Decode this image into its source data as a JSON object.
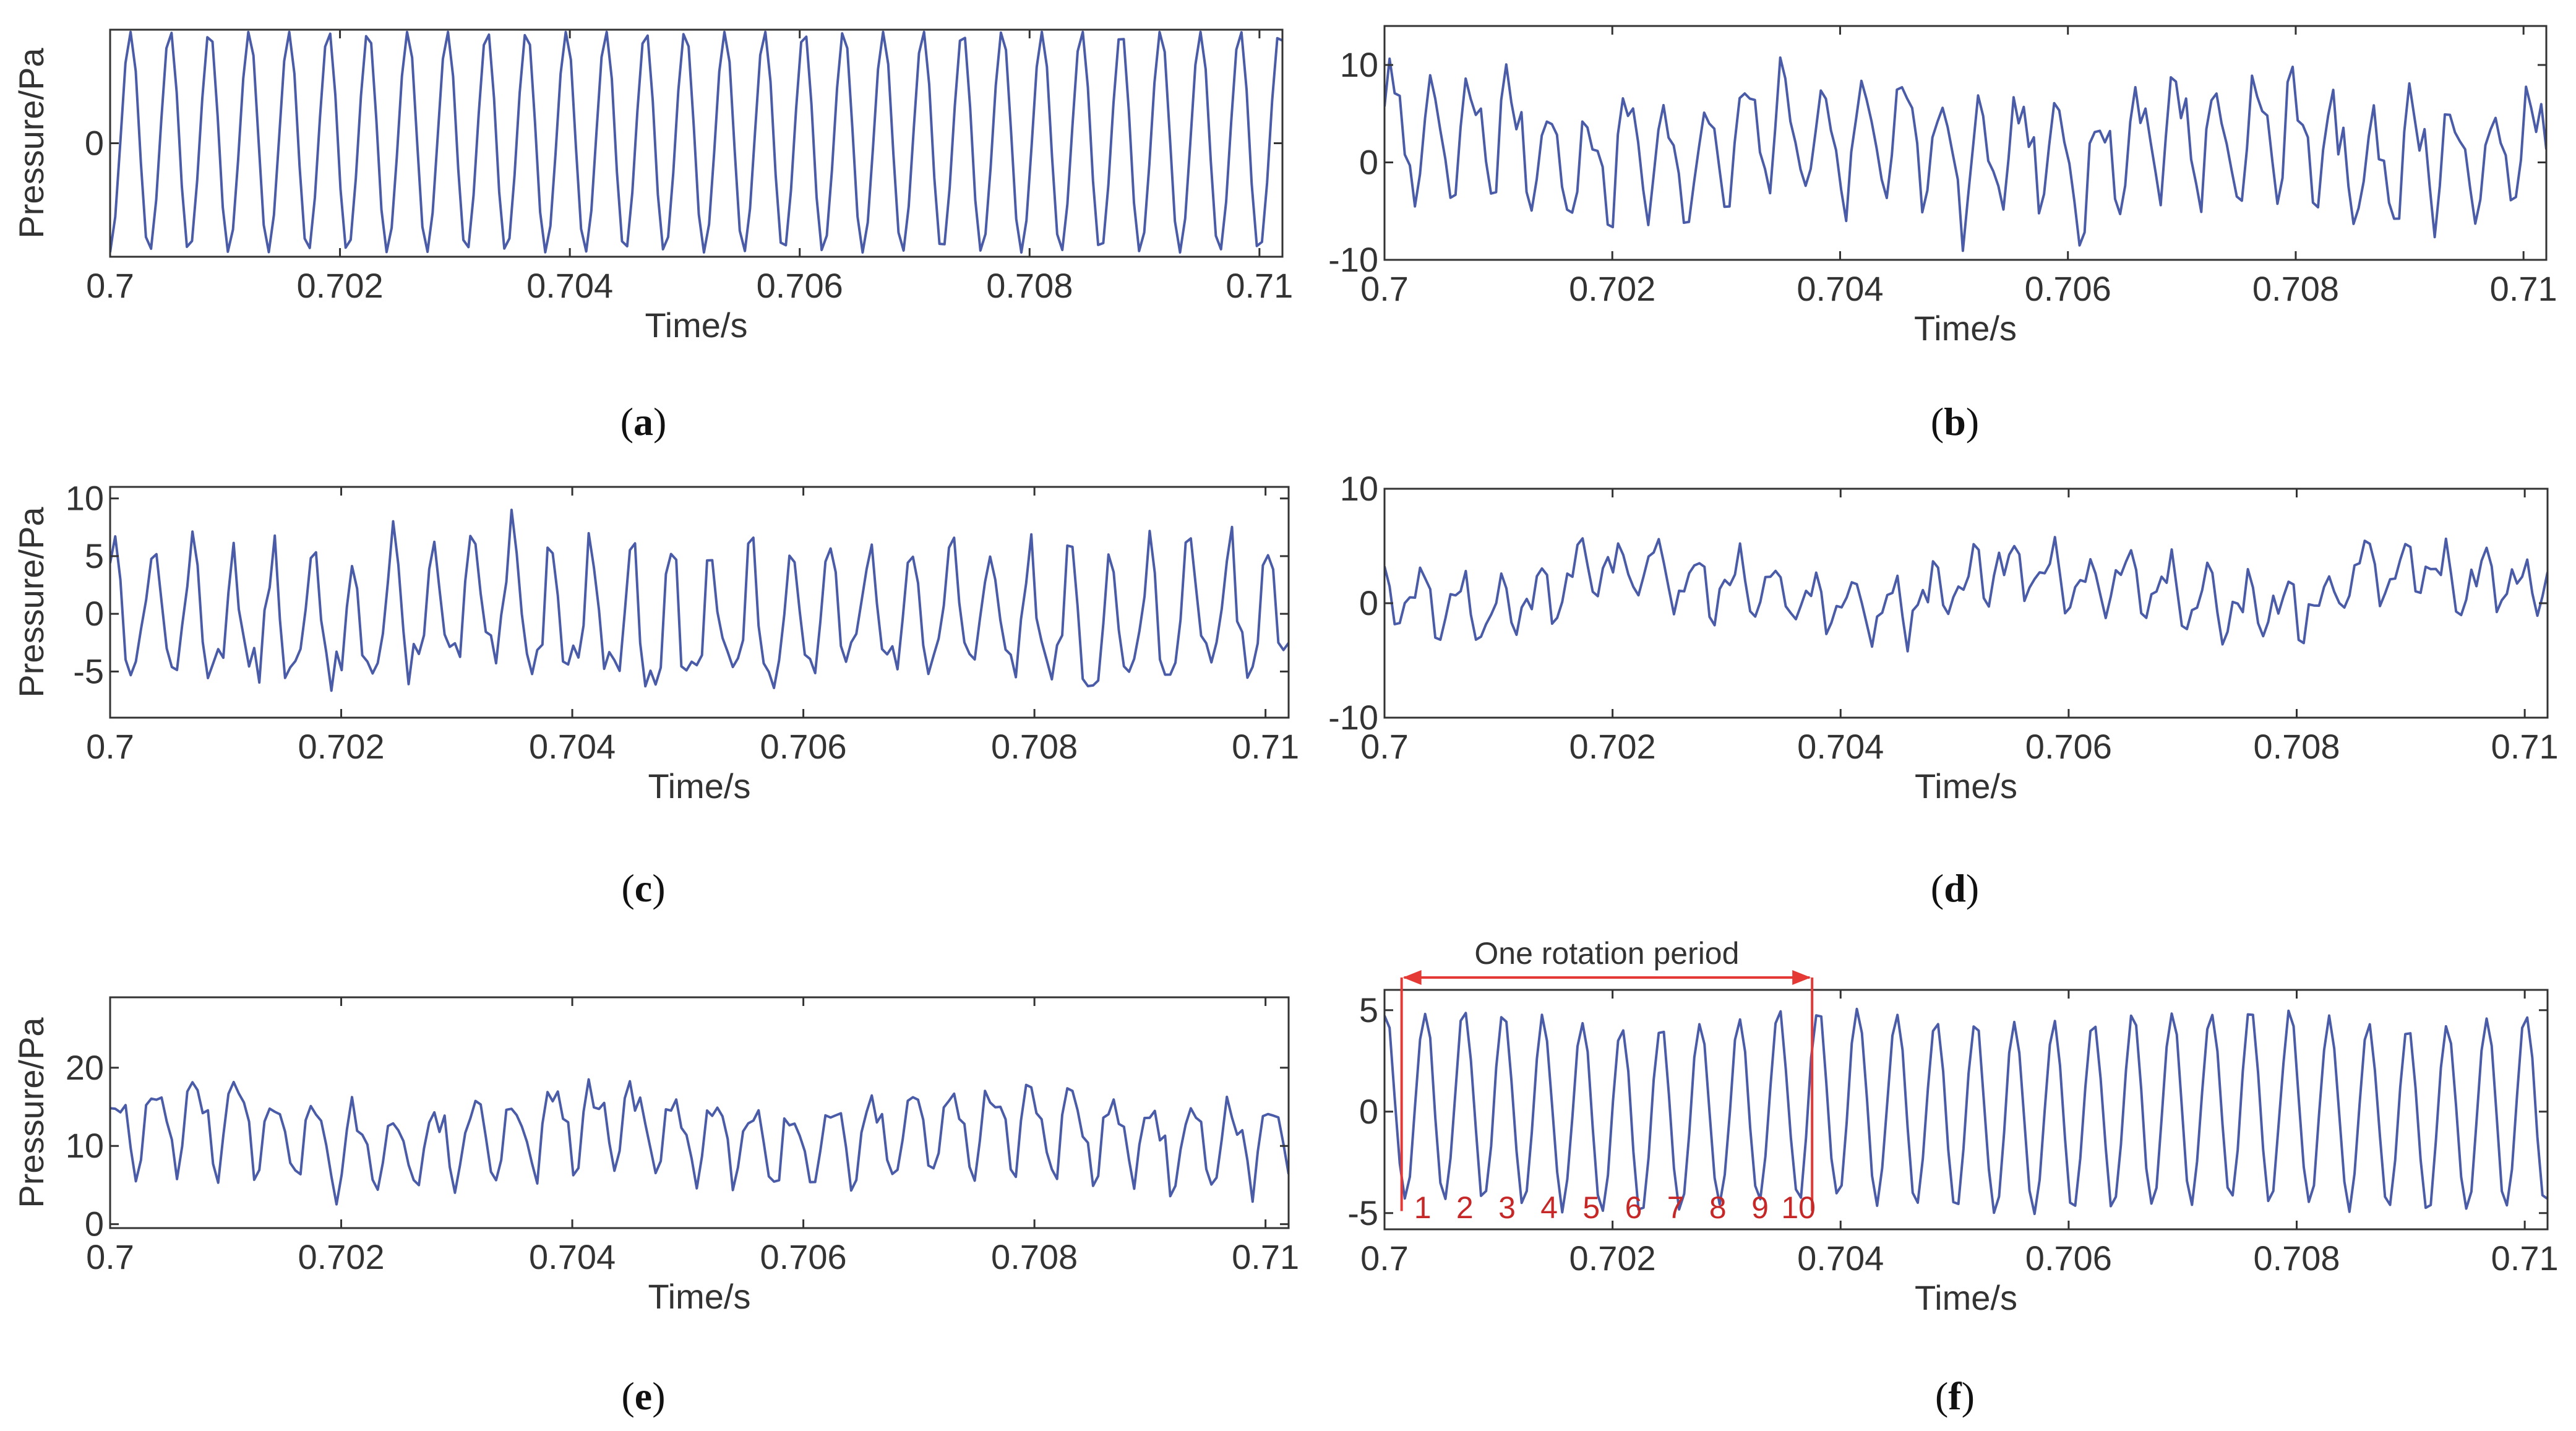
{
  "figure": {
    "line_color": "#4a5ba8",
    "annotation_color": "#e53935",
    "blade_label_color": "#c62828"
  },
  "chart_data": [
    {
      "id": "a",
      "type": "line",
      "caption": "a",
      "title": "",
      "xlabel": "Time/s",
      "ylabel": "Pressure/Pa",
      "xlim": [
        0.7,
        0.7102
      ],
      "ylim": [
        -1.0,
        1.0
      ],
      "xticks": [
        0.7,
        0.702,
        0.704,
        0.706,
        0.708,
        0.71
      ],
      "xtick_labels": [
        "0.7",
        "0.702",
        "0.704",
        "0.706",
        "0.708",
        "0.71"
      ],
      "yticks": [
        0
      ],
      "ytick_labels": [
        "0"
      ],
      "signal": {
        "t0": 0.7,
        "t1": 0.7102,
        "n": 230,
        "offset": 0,
        "components": [
          {
            "amp": 0.98,
            "freq": 2900,
            "phase": 4.7
          },
          {
            "amp": 0.04,
            "freq": 5800,
            "phase": 0.5
          }
        ],
        "noise": 0.0,
        "seed": 1,
        "clip": [
          -0.98,
          0.98
        ]
      }
    },
    {
      "id": "b",
      "type": "line",
      "caption": "b",
      "title": "",
      "xlabel": "Time/s",
      "ylabel": "",
      "xlim": [
        0.7,
        0.7102
      ],
      "ylim": [
        -10,
        14
      ],
      "xticks": [
        0.7,
        0.702,
        0.704,
        0.706,
        0.708,
        0.71
      ],
      "xtick_labels": [
        "0.7",
        "0.702",
        "0.704",
        "0.706",
        "0.708",
        "0.71"
      ],
      "yticks": [
        -10,
        0,
        10
      ],
      "ytick_labels": [
        "-10",
        "0",
        "10"
      ],
      "signal": {
        "t0": 0.7,
        "t1": 0.7102,
        "n": 230,
        "offset": 1.5,
        "components": [
          {
            "amp": 5.2,
            "freq": 2900,
            "phase": 0.3
          },
          {
            "amp": 1.8,
            "freq": 5800,
            "phase": 1.2
          },
          {
            "amp": 1.5,
            "freq": 290,
            "phase": 0.8
          },
          {
            "amp": 1.2,
            "freq": 870,
            "phase": 2.0
          }
        ],
        "noise": 2.2,
        "seed": 7,
        "clip": [
          -9.8,
          13.8
        ]
      }
    },
    {
      "id": "c",
      "type": "line",
      "caption": "c",
      "title": "",
      "xlabel": "Time/s",
      "ylabel": "Pressure/Pa",
      "xlim": [
        0.7,
        0.7102
      ],
      "ylim": [
        -9,
        11
      ],
      "xticks": [
        0.7,
        0.702,
        0.704,
        0.706,
        0.708,
        0.71
      ],
      "xtick_labels": [
        "0.7",
        "0.702",
        "0.704",
        "0.706",
        "0.708",
        "0.71"
      ],
      "yticks": [
        -5,
        0,
        5,
        10
      ],
      "ytick_labels": [
        "-5",
        "0",
        "5",
        "10"
      ],
      "signal": {
        "t0": 0.7,
        "t1": 0.7102,
        "n": 230,
        "offset": -0.5,
        "components": [
          {
            "amp": 5.3,
            "freq": 2900,
            "phase": 1.0
          },
          {
            "amp": 1.6,
            "freq": 5800,
            "phase": 0.4
          },
          {
            "amp": 0.8,
            "freq": 290,
            "phase": 1.7
          }
        ],
        "noise": 1.9,
        "seed": 13,
        "clip": [
          -8.8,
          10.8
        ]
      }
    },
    {
      "id": "d",
      "type": "line",
      "caption": "d",
      "title": "",
      "xlabel": "Time/s",
      "ylabel": "",
      "xlim": [
        0.7,
        0.7102
      ],
      "ylim": [
        -10,
        10
      ],
      "xticks": [
        0.7,
        0.702,
        0.704,
        0.706,
        0.708,
        0.71
      ],
      "xtick_labels": [
        "0.7",
        "0.702",
        "0.704",
        "0.706",
        "0.708",
        "0.71"
      ],
      "yticks": [
        -10,
        0,
        10
      ],
      "ytick_labels": [
        "-10",
        "0",
        "10"
      ],
      "signal": {
        "t0": 0.7,
        "t1": 0.7102,
        "n": 230,
        "offset": 1.3,
        "components": [
          {
            "amp": 2.0,
            "freq": 2900,
            "phase": 2.1
          },
          {
            "amp": 1.2,
            "freq": 5800,
            "phase": 0.9
          },
          {
            "amp": 1.6,
            "freq": 290,
            "phase": 3.6
          },
          {
            "amp": 0.7,
            "freq": 580,
            "phase": 1.1
          }
        ],
        "noise": 1.3,
        "seed": 21,
        "clip": [
          -9.5,
          9.5
        ]
      }
    },
    {
      "id": "e",
      "type": "line",
      "caption": "e",
      "title": "",
      "xlabel": "Time/s",
      "ylabel": "Pressure/Pa",
      "xlim": [
        0.7,
        0.7102
      ],
      "ylim": [
        -0.5,
        29
      ],
      "xticks": [
        0.7,
        0.702,
        0.704,
        0.706,
        0.708,
        0.71
      ],
      "xtick_labels": [
        "0.7",
        "0.702",
        "0.704",
        "0.706",
        "0.708",
        "0.71"
      ],
      "yticks": [
        0,
        10,
        20
      ],
      "ytick_labels": [
        "0",
        "10",
        "20"
      ],
      "signal": {
        "t0": 0.7,
        "t1": 0.7102,
        "n": 230,
        "offset": 11.5,
        "components": [
          {
            "amp": 4.8,
            "freq": 2900,
            "phase": 0.6
          },
          {
            "amp": 1.6,
            "freq": 5800,
            "phase": 2.2
          },
          {
            "amp": 1.4,
            "freq": 290,
            "phase": 0.2
          }
        ],
        "noise": 1.9,
        "seed": 33,
        "clip": [
          0.2,
          24.0
        ]
      }
    },
    {
      "id": "f",
      "type": "line",
      "caption": "f",
      "title": "",
      "xlabel": "Time/s",
      "ylabel": "",
      "xlim": [
        0.7,
        0.7102
      ],
      "ylim": [
        -5.8,
        6.0
      ],
      "xticks": [
        0.7,
        0.702,
        0.704,
        0.706,
        0.708,
        0.71
      ],
      "xtick_labels": [
        "0.7",
        "0.702",
        "0.704",
        "0.706",
        "0.708",
        "0.71"
      ],
      "yticks": [
        -5,
        0,
        5
      ],
      "ytick_labels": [
        "-5",
        "0",
        "5"
      ],
      "signal": {
        "t0": 0.7,
        "t1": 0.7102,
        "n": 230,
        "offset": 0,
        "components": [
          {
            "amp": 4.7,
            "freq": 2900,
            "phase": 1.4
          },
          {
            "amp": 0.35,
            "freq": 290,
            "phase": 0.7
          }
        ],
        "noise": 0.25,
        "seed": 5,
        "clip": [
          -5.6,
          5.5
        ]
      },
      "annotation": {
        "text": "One rotation period",
        "t_start": 0.70015,
        "t_end": 0.70375,
        "blade_labels": [
          "1",
          "2",
          "3",
          "4",
          "5",
          "6",
          "7",
          "8",
          "9",
          "10"
        ]
      }
    }
  ]
}
